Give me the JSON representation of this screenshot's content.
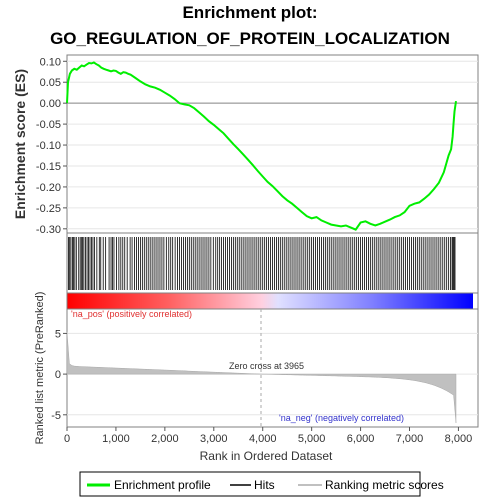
{
  "chart_data": {
    "type": "line",
    "title_line1": "Enrichment plot:",
    "title_line2": "GO_REGULATION_OF_PROTEIN_LOCALIZATION",
    "es_panel": {
      "ylabel": "Enrichment score (ES)",
      "ylim": [
        -0.31,
        0.115
      ],
      "yticks": [
        "0.10",
        "0.05",
        "0.00",
        "-0.05",
        "-0.10",
        "-0.15",
        "-0.20",
        "-0.25",
        "-0.30"
      ],
      "ytick_values": [
        0.1,
        0.05,
        0.0,
        -0.05,
        -0.1,
        -0.15,
        -0.2,
        -0.25,
        -0.3
      ],
      "series_name": "Enrichment profile",
      "color": "#00ee00",
      "x": [
        0,
        20,
        60,
        100,
        150,
        200,
        250,
        300,
        350,
        400,
        450,
        500,
        550,
        600,
        650,
        700,
        750,
        800,
        850,
        900,
        950,
        1000,
        1050,
        1100,
        1150,
        1200,
        1250,
        1300,
        1400,
        1500,
        1600,
        1700,
        1800,
        1900,
        2000,
        2100,
        2200,
        2300,
        2400,
        2500,
        2600,
        2700,
        2800,
        2900,
        3000,
        3100,
        3200,
        3300,
        3400,
        3500,
        3600,
        3700,
        3800,
        3900,
        4000,
        4100,
        4200,
        4300,
        4400,
        4500,
        4600,
        4700,
        4800,
        4900,
        5000,
        5100,
        5200,
        5300,
        5400,
        5500,
        5600,
        5700,
        5800,
        5900,
        6000,
        6100,
        6200,
        6300,
        6400,
        6500,
        6600,
        6700,
        6800,
        6900,
        7000,
        7100,
        7200,
        7300,
        7400,
        7500,
        7600,
        7700,
        7750,
        7800,
        7850,
        7880,
        7900,
        7920,
        7950
      ],
      "y": [
        0.0,
        0.05,
        0.07,
        0.078,
        0.082,
        0.08,
        0.085,
        0.09,
        0.088,
        0.092,
        0.096,
        0.095,
        0.097,
        0.093,
        0.09,
        0.085,
        0.082,
        0.08,
        0.078,
        0.076,
        0.078,
        0.077,
        0.073,
        0.07,
        0.074,
        0.073,
        0.07,
        0.068,
        0.06,
        0.052,
        0.045,
        0.04,
        0.037,
        0.032,
        0.025,
        0.018,
        0.01,
        0.0,
        -0.003,
        -0.005,
        -0.012,
        -0.022,
        -0.032,
        -0.043,
        -0.052,
        -0.062,
        -0.072,
        -0.085,
        -0.098,
        -0.11,
        -0.122,
        -0.135,
        -0.148,
        -0.162,
        -0.175,
        -0.188,
        -0.198,
        -0.21,
        -0.222,
        -0.232,
        -0.24,
        -0.25,
        -0.26,
        -0.27,
        -0.275,
        -0.272,
        -0.28,
        -0.285,
        -0.29,
        -0.292,
        -0.294,
        -0.292,
        -0.297,
        -0.302,
        -0.285,
        -0.282,
        -0.288,
        -0.292,
        -0.288,
        -0.283,
        -0.278,
        -0.272,
        -0.268,
        -0.26,
        -0.245,
        -0.24,
        -0.237,
        -0.228,
        -0.218,
        -0.205,
        -0.19,
        -0.165,
        -0.145,
        -0.125,
        -0.11,
        -0.08,
        -0.05,
        -0.02,
        0.005
      ]
    },
    "hits_panel": {
      "legend_label": "Hits",
      "hit_positions": [
        30,
        55,
        80,
        110,
        130,
        160,
        190,
        240,
        270,
        300,
        320,
        345,
        380,
        410,
        440,
        470,
        500,
        530,
        560,
        610,
        660,
        690,
        740,
        790,
        860,
        900,
        930,
        960,
        1010,
        1060,
        1100,
        1140,
        1180,
        1230,
        1290,
        1330,
        1380,
        1420,
        1460,
        1500,
        1540,
        1580,
        1620,
        1660,
        1700,
        1740,
        1780,
        1820,
        1860,
        1900,
        1940,
        1980,
        2030,
        2080,
        2120,
        2160,
        2210,
        2260,
        2300,
        2340,
        2380,
        2420,
        2460,
        2500,
        2540,
        2580,
        2620,
        2660,
        2700,
        2740,
        2780,
        2820,
        2860,
        2900,
        2940,
        2990,
        3040,
        3080,
        3120,
        3160,
        3200,
        3240,
        3280,
        3320,
        3360,
        3400,
        3440,
        3480,
        3520,
        3560,
        3600,
        3640,
        3680,
        3720,
        3760,
        3800,
        3840,
        3880,
        3920,
        3960,
        4000,
        4040,
        4080,
        4120,
        4160,
        4200,
        4240,
        4280,
        4320,
        4360,
        4400,
        4440,
        4480,
        4520,
        4560,
        4600,
        4640,
        4680,
        4720,
        4760,
        4800,
        4840,
        4880,
        4920,
        4960,
        5000,
        5040,
        5080,
        5120,
        5160,
        5200,
        5240,
        5280,
        5320,
        5360,
        5400,
        5440,
        5480,
        5520,
        5560,
        5600,
        5640,
        5680,
        5720,
        5760,
        5800,
        5840,
        5880,
        5920,
        5960,
        6000,
        6040,
        6080,
        6120,
        6160,
        6200,
        6240,
        6280,
        6320,
        6360,
        6400,
        6440,
        6480,
        6520,
        6560,
        6600,
        6640,
        6680,
        6720,
        6760,
        6800,
        6840,
        6880,
        6920,
        6960,
        7000,
        7040,
        7080,
        7120,
        7160,
        7200,
        7240,
        7280,
        7320,
        7360,
        7400,
        7440,
        7480,
        7520,
        7560,
        7600,
        7640,
        7680,
        7720,
        7760,
        7800,
        7840,
        7870,
        7890,
        7910,
        7930
      ]
    },
    "rank_panel": {
      "ylabel": "Ranked list metric (PreRanked)",
      "xlabel": "Rank in Ordered Dataset",
      "xlim": [
        0,
        8400
      ],
      "xticks": [
        "0",
        "1,000",
        "2,000",
        "3,000",
        "4,000",
        "5,000",
        "6,000",
        "7,000",
        "8,000"
      ],
      "xtick_values": [
        0,
        1000,
        2000,
        3000,
        4000,
        5000,
        6000,
        7000,
        8000
      ],
      "ylim": [
        -6.5,
        8
      ],
      "yticks": [
        "5",
        "0",
        "-5"
      ],
      "ytick_values": [
        5,
        0,
        -5
      ],
      "zero_cross_label": "Zero cross at 3965",
      "zero_cross": 3965,
      "pos_label": "'na_pos' (positively correlated)",
      "neg_label": "'na_neg' (negatively correlated)",
      "legend_label": "Ranking metric scores",
      "n_genes": 7950
    },
    "legend": [
      {
        "label": "Enrichment profile",
        "color": "#00ee00"
      },
      {
        "label": "Hits",
        "color": "#000000"
      },
      {
        "label": "Ranking metric scores",
        "color": "#c0c0c0"
      }
    ],
    "colors": {
      "pos": "#ff0000",
      "neg": "#0000ff",
      "pos_label": "#e03030",
      "neg_label": "#3333cc"
    }
  }
}
